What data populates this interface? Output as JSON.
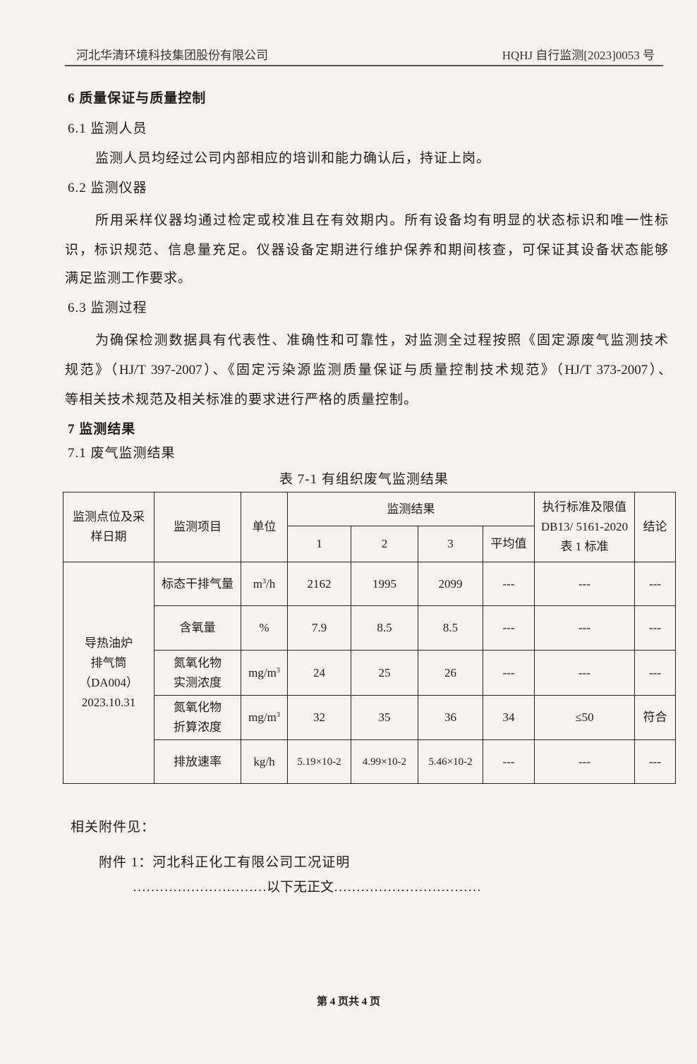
{
  "header": {
    "company": "河北华清环境科技集团股份有限公司",
    "report_no": "HQHJ 自行监测[2023]0053 号"
  },
  "section6": {
    "title": "6 质量保证与质量控制",
    "s61_title": "6.1 监测人员",
    "s61_text": "监测人员均经过公司内部相应的培训和能力确认后，持证上岗。",
    "s62_title": "6.2 监测仪器",
    "s62_lines": [
      "所用采样仪器均通过检定或校准且在有效期内。所有设备均有明显的状态标识和唯一性标",
      "识，标识规范、信息量充足。仪器设备定期进行维护保养和期间核查，可保证其设备状态能够",
      "满足监测工作要求。"
    ],
    "s63_title": "6.3 监测过程",
    "s63_lines": [
      "为确保检测数据具有代表性、准确性和可靠性，对监测全过程按照《固定源废气监测技术",
      "规范》（HJ/T 397-2007）、《固定污染源监测质量保证与质量控制技术规范》（HJ/T 373-2007）、",
      "等相关技术规范及相关标准的要求进行严格的质量控制。"
    ]
  },
  "section7": {
    "title": "7 监测结果",
    "s71_title": "7.1 废气监测结果",
    "table_caption": "表 7-1 有组织废气监测结果"
  },
  "table": {
    "headers": {
      "site": "监测点位及采样日期",
      "item": "监测项目",
      "unit": "单位",
      "results": "监测结果",
      "r1": "1",
      "r2": "2",
      "r3": "3",
      "avg": "平均值",
      "standard": "执行标准及限值DB13/ 5161-2020表 1 标准",
      "conclusion": "结论"
    },
    "site": [
      "导热油炉",
      "排气筒",
      "（DA004）",
      "2023.10.31"
    ],
    "rows": [
      {
        "item": "标态干排气量",
        "unit": "m3/h",
        "v1": "2162",
        "v2": "1995",
        "v3": "2099",
        "avg": "---",
        "limit": "---",
        "conclusion": "---"
      },
      {
        "item": "含氧量",
        "unit": "%",
        "v1": "7.9",
        "v2": "8.5",
        "v3": "8.5",
        "avg": "---",
        "limit": "---",
        "conclusion": "---"
      },
      {
        "item": "氮氧化物实测浓度",
        "unit": "mg/m3",
        "v1": "24",
        "v2": "25",
        "v3": "26",
        "avg": "---",
        "limit": "---",
        "conclusion": "---"
      },
      {
        "item": "氮氧化物折算浓度",
        "unit": "mg/m3",
        "v1": "32",
        "v2": "35",
        "v3": "36",
        "avg": "34",
        "limit": "≤50",
        "conclusion": "符合"
      },
      {
        "item": "排放速率",
        "unit": "kg/h",
        "v1": "5.19×10-2",
        "v2": "4.99×10-2",
        "v3": "5.46×10-2",
        "avg": "---",
        "limit": "---",
        "conclusion": "---"
      }
    ]
  },
  "attachments": {
    "intro": "相关附件见：",
    "item1": "附件 1：河北科正化工有限公司工况证明",
    "end": "…………………………以下无正文……………………………"
  },
  "footer": {
    "page": "第 4 页共 4 页"
  }
}
